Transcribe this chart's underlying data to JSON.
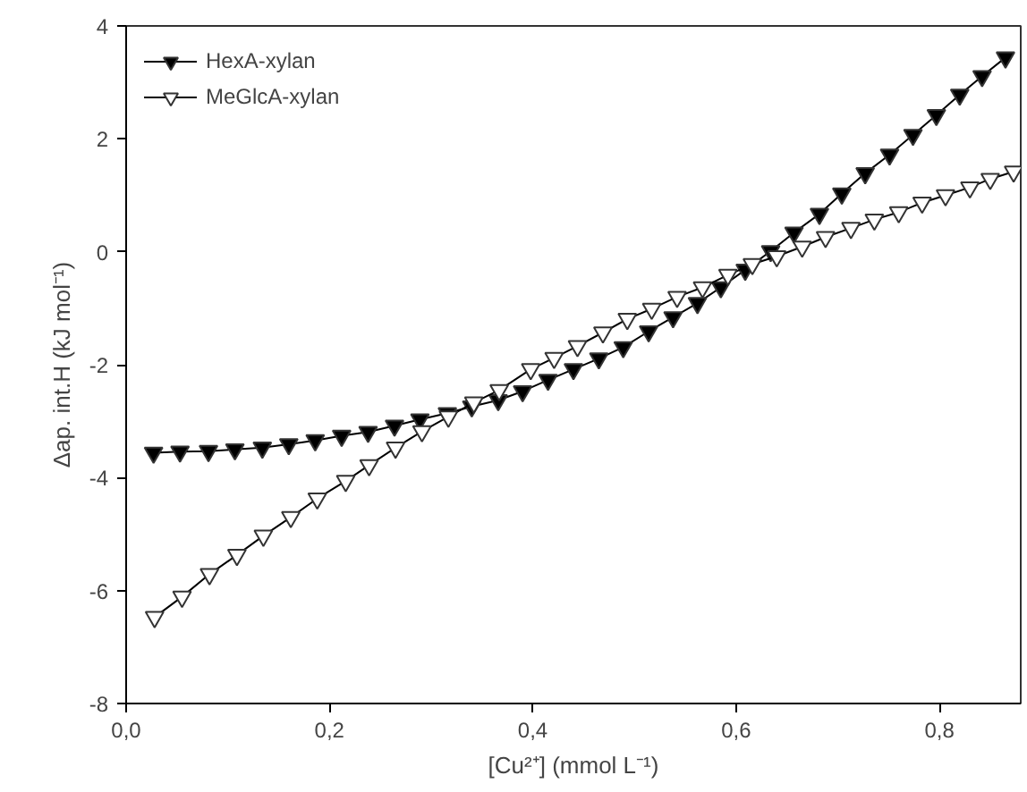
{
  "chart_data": {
    "type": "line",
    "xlabel": "[Cu²⁺] (mmol L⁻¹)",
    "ylabel": "Δap. int.H (kJ mol⁻¹)",
    "xlim": [
      0,
      0.88
    ],
    "xticks": [
      {
        "value": 0,
        "label": "0,0"
      },
      {
        "value": 0.2,
        "label": "0,2"
      },
      {
        "value": 0.4,
        "label": "0,4"
      },
      {
        "value": 0.6,
        "label": "0,6"
      },
      {
        "value": 0.8,
        "label": "0,8"
      }
    ],
    "ylim": [
      -8,
      4
    ],
    "yticks": [
      -8,
      -6,
      -4,
      -2,
      0,
      2,
      4
    ],
    "grid": false,
    "legend": "top left",
    "marker": "triangle",
    "line_style": "solid",
    "series": [
      {
        "name": "HexA-xylan",
        "color": "#000000",
        "x": [
          0.027,
          0.053,
          0.081,
          0.107,
          0.134,
          0.16,
          0.186,
          0.212,
          0.238,
          0.264,
          0.289,
          0.316,
          0.34,
          0.366,
          0.39,
          0.415,
          0.44,
          0.465,
          0.489,
          0.514,
          0.538,
          0.562,
          0.585,
          0.609,
          0.634,
          0.657,
          0.682,
          0.704,
          0.727,
          0.751,
          0.774,
          0.797,
          0.82,
          0.842,
          0.865
        ],
        "values": [
          -3.56,
          -3.54,
          -3.53,
          -3.5,
          -3.47,
          -3.41,
          -3.34,
          -3.26,
          -3.19,
          -3.08,
          -2.97,
          -2.86,
          -2.74,
          -2.63,
          -2.47,
          -2.27,
          -2.08,
          -1.89,
          -1.69,
          -1.41,
          -1.16,
          -0.91,
          -0.63,
          -0.32,
          0.01,
          0.34,
          0.67,
          1.03,
          1.39,
          1.72,
          2.07,
          2.42,
          2.78,
          3.11,
          3.44
        ]
      },
      {
        "name": "MeGlcA-xylan",
        "color": "#ffffff",
        "x": [
          0.028,
          0.055,
          0.082,
          0.109,
          0.135,
          0.162,
          0.188,
          0.216,
          0.239,
          0.265,
          0.291,
          0.317,
          0.342,
          0.367,
          0.398,
          0.421,
          0.444,
          0.469,
          0.493,
          0.517,
          0.542,
          0.567,
          0.592,
          0.616,
          0.64,
          0.665,
          0.688,
          0.713,
          0.736,
          0.76,
          0.783,
          0.806,
          0.83,
          0.85,
          0.873
        ],
        "values": [
          -6.47,
          -6.11,
          -5.71,
          -5.37,
          -5.03,
          -4.7,
          -4.37,
          -4.06,
          -3.78,
          -3.47,
          -3.18,
          -2.92,
          -2.67,
          -2.45,
          -2.08,
          -1.88,
          -1.67,
          -1.43,
          -1.19,
          -1.01,
          -0.8,
          -0.63,
          -0.41,
          -0.22,
          -0.08,
          0.09,
          0.26,
          0.42,
          0.57,
          0.7,
          0.87,
          1.0,
          1.14,
          1.29,
          1.42
        ]
      }
    ]
  }
}
